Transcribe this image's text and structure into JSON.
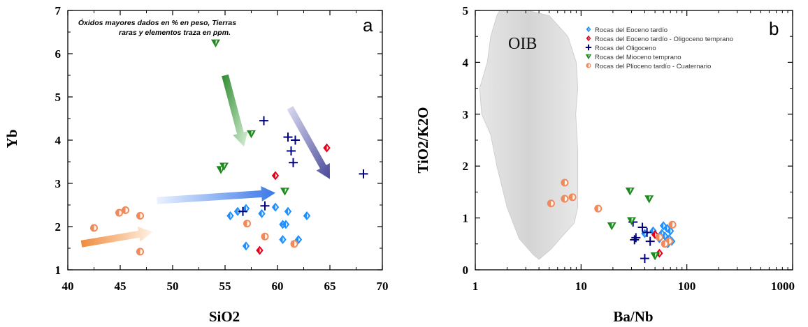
{
  "colors": {
    "eoceno": "#1e90ff",
    "eoceno_oligoceno": "#e3001b",
    "oligoceno": "#000080",
    "mioceno": "#1e8a1e",
    "plioceno": "#f08a5a"
  },
  "chart_data": [
    {
      "type": "scatter",
      "panel_label": "a",
      "xlabel": "SiO2",
      "ylabel": "Yb",
      "xlim": [
        40,
        70
      ],
      "ylim": [
        1,
        7
      ],
      "x_ticks": [
        "40",
        "45",
        "50",
        "55",
        "60",
        "65",
        "70"
      ],
      "y_ticks": [
        "1",
        "2",
        "3",
        "4",
        "5",
        "6",
        "7"
      ],
      "note_lines": [
        "Óxidos mayores dados en % en peso, Tierras",
        "raras y elementos traza en ppm."
      ],
      "series": [
        {
          "key": "eoceno",
          "marker": "diamond",
          "points": [
            [
              55.5,
              2.25
            ],
            [
              56.2,
              2.35
            ],
            [
              57,
              2.42
            ],
            [
              58.5,
              2.3
            ],
            [
              59.8,
              2.45
            ],
            [
              61,
              2.35
            ],
            [
              62.8,
              2.25
            ],
            [
              60.5,
              2.05
            ],
            [
              60.8,
              2.05
            ],
            [
              60.5,
              1.7
            ],
            [
              62,
              1.7
            ],
            [
              57,
              1.55
            ]
          ]
        },
        {
          "key": "eoceno_oligoceno",
          "marker": "diamond",
          "points": [
            [
              64.7,
              3.82
            ],
            [
              59.8,
              3.18
            ],
            [
              58.3,
              1.45
            ]
          ]
        },
        {
          "key": "oligoceno",
          "marker": "plus",
          "points": [
            [
              58.7,
              4.45
            ],
            [
              61,
              4.07
            ],
            [
              61.7,
              4.0
            ],
            [
              61.3,
              3.75
            ],
            [
              61.5,
              3.48
            ],
            [
              68.2,
              3.22
            ],
            [
              58.8,
              2.48
            ],
            [
              56.7,
              2.35
            ]
          ]
        },
        {
          "key": "mioceno",
          "marker": "triangle",
          "points": [
            [
              54.1,
              6.25
            ],
            [
              57.5,
              4.15
            ],
            [
              54.6,
              3.32
            ],
            [
              54.9,
              3.4
            ],
            [
              60.7,
              2.82
            ]
          ]
        },
        {
          "key": "plioceno",
          "marker": "circle",
          "points": [
            [
              42.5,
              1.97
            ],
            [
              44.9,
              2.32
            ],
            [
              45.5,
              2.38
            ],
            [
              46.9,
              2.25
            ],
            [
              46.9,
              1.42
            ],
            [
              57.1,
              2.07
            ],
            [
              58.8,
              1.77
            ],
            [
              61.6,
              1.6
            ]
          ]
        }
      ],
      "arrows": [
        {
          "color": "green",
          "from": [
            55,
            5.5
          ],
          "to": [
            56.8,
            3.85
          ]
        },
        {
          "color": "navy",
          "from": [
            61.2,
            4.75
          ],
          "to": [
            65,
            3.1
          ]
        },
        {
          "color": "blue",
          "from": [
            48.5,
            2.6
          ],
          "to": [
            59.8,
            2.78
          ]
        },
        {
          "color": "orange",
          "from": [
            41.3,
            1.6
          ],
          "to": [
            48.1,
            1.88
          ]
        }
      ]
    },
    {
      "type": "scatter",
      "panel_label": "b",
      "xlabel": "Ba/Nb",
      "ylabel": "TiO2/K2O",
      "xscale": "log",
      "xlim": [
        1,
        1000
      ],
      "ylim": [
        0,
        5
      ],
      "x_ticks": [
        "1",
        "10",
        "100",
        "1000"
      ],
      "y_ticks": [
        "0",
        "1",
        "2",
        "3",
        "4",
        "5"
      ],
      "region_label": "OIB",
      "region": [
        [
          1.7,
          5
        ],
        [
          3.1,
          5
        ],
        [
          5,
          4.9
        ],
        [
          7.5,
          4.5
        ],
        [
          9,
          4.0
        ],
        [
          9.3,
          3.5
        ],
        [
          8.9,
          3.0
        ],
        [
          9.3,
          2.3
        ],
        [
          9.3,
          1.2
        ],
        [
          8.6,
          0.9
        ],
        [
          7,
          0.7
        ],
        [
          5.2,
          0.4
        ],
        [
          4,
          0.2
        ],
        [
          3.5,
          0.3
        ],
        [
          2.6,
          0.6
        ],
        [
          2.0,
          1.2
        ],
        [
          1.6,
          2.0
        ],
        [
          1.4,
          2.6
        ],
        [
          1.15,
          3.0
        ],
        [
          1.1,
          3.5
        ],
        [
          1.3,
          4.0
        ],
        [
          1.4,
          4.5
        ],
        [
          1.6,
          4.9
        ]
      ],
      "legend": [
        {
          "key": "eoceno",
          "marker": "diamond",
          "label": "Rocas del Eoceno tardío"
        },
        {
          "key": "eoceno_oligoceno",
          "marker": "diamond",
          "label": "Rocas del Eoceno tardío - Oligoceno temprano"
        },
        {
          "key": "oligoceno",
          "marker": "plus",
          "label": "Rocas del Oligoceno"
        },
        {
          "key": "mioceno",
          "marker": "triangle",
          "label": "Rocas del Mioceno temprano"
        },
        {
          "key": "plioceno",
          "marker": "circle",
          "label": "Rocas del Plioceno tardío - Cuaternario"
        }
      ],
      "series": [
        {
          "key": "eoceno",
          "marker": "diamond",
          "points": [
            [
              60,
              0.85
            ],
            [
              65,
              0.8
            ],
            [
              70,
              0.75
            ],
            [
              58,
              0.7
            ],
            [
              62,
              0.65
            ],
            [
              68,
              0.6
            ],
            [
              55,
              0.6
            ],
            [
              72,
              0.55
            ],
            [
              48,
              0.75
            ],
            [
              40,
              0.7
            ],
            [
              66,
              0.5
            ]
          ]
        },
        {
          "key": "eoceno_oligoceno",
          "marker": "diamond",
          "points": [
            [
              50,
              0.68
            ],
            [
              55,
              0.32
            ]
          ]
        },
        {
          "key": "oligoceno",
          "marker": "plus",
          "points": [
            [
              31,
              0.92
            ],
            [
              38,
              0.82
            ],
            [
              42,
              0.72
            ],
            [
              33,
              0.62
            ],
            [
              32,
              0.58
            ],
            [
              45,
              0.55
            ],
            [
              40,
              0.22
            ]
          ]
        },
        {
          "key": "mioceno",
          "marker": "triangle",
          "points": [
            [
              29,
              1.52
            ],
            [
              44,
              1.37
            ],
            [
              19.5,
              0.85
            ],
            [
              30,
              0.95
            ],
            [
              50,
              0.27
            ]
          ]
        },
        {
          "key": "plioceno",
          "marker": "circle",
          "points": [
            [
              5.2,
              1.28
            ],
            [
              7,
              1.68
            ],
            [
              7,
              1.37
            ],
            [
              8.3,
              1.4
            ],
            [
              14.5,
              1.18
            ],
            [
              73,
              0.87
            ],
            [
              68,
              0.55
            ],
            [
              62,
              0.5
            ],
            [
              55,
              0.63
            ]
          ]
        }
      ]
    }
  ]
}
